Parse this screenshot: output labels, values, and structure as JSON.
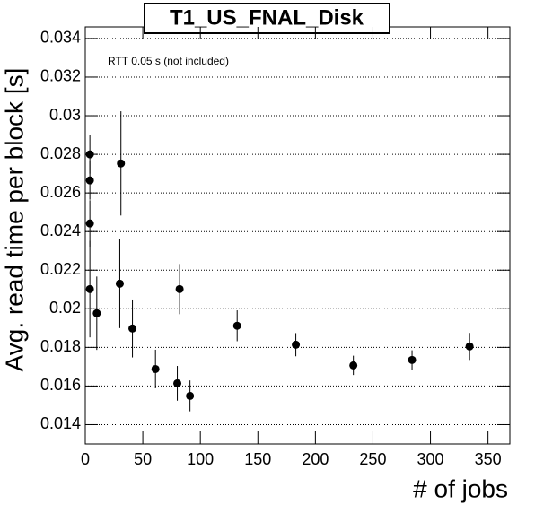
{
  "chart_data": {
    "type": "scatter",
    "title": "T1_US_FNAL_Disk",
    "annotation": "RTT 0.05 s (not included)",
    "x_label": "# of jobs",
    "y_label": "Avg. read time per block [s]",
    "color": "#000000",
    "grid": "y",
    "xlim": [
      0,
      369
    ],
    "ylim": [
      0.013,
      0.0346
    ],
    "xticks": [
      0,
      50,
      100,
      150,
      200,
      250,
      300,
      350
    ],
    "yticks": [
      0.014,
      0.016,
      0.018,
      0.02,
      0.022,
      0.024,
      0.026,
      0.028,
      0.03,
      0.032,
      0.034
    ],
    "x": [
      4,
      4,
      4,
      4,
      10,
      31,
      30,
      41,
      61,
      80,
      82,
      91,
      132,
      183,
      233,
      284,
      334
    ],
    "values": [
      0.028,
      0.02665,
      0.02442,
      0.02102,
      0.01977,
      0.02753,
      0.0213,
      0.01898,
      0.01688,
      0.01614,
      0.02102,
      0.01549,
      0.01912,
      0.01814,
      0.01707,
      0.01735,
      0.01805
    ],
    "errors": [
      0.001,
      0.001,
      0.0012,
      0.0025,
      0.0019,
      0.0027,
      0.0023,
      0.0015,
      0.001,
      0.0009,
      0.0013,
      0.0008,
      0.0008,
      0.0006,
      0.0005,
      0.0005,
      0.0007
    ]
  }
}
